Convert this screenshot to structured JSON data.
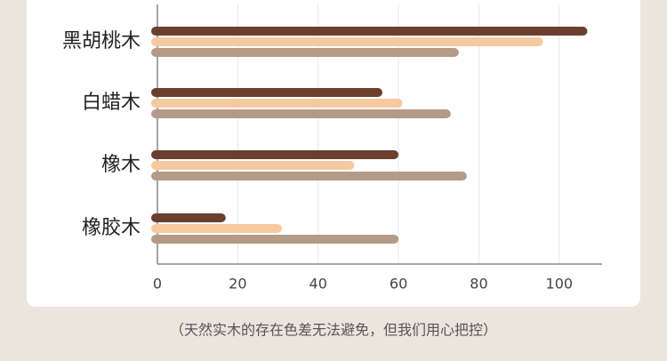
{
  "chart_data": {
    "type": "bar",
    "orientation": "horizontal",
    "categories": [
      "黑胡桃木",
      "白蜡木",
      "橡木",
      "橡胶木"
    ],
    "series": [
      {
        "color": "#6b3f2e",
        "values": [
          107,
          56,
          60,
          17
        ]
      },
      {
        "color": "#f7c9a0",
        "values": [
          96,
          61,
          49,
          31
        ]
      },
      {
        "color": "#b49a87",
        "values": [
          75,
          73,
          77,
          60
        ]
      }
    ],
    "xlim": [
      0,
      110
    ],
    "xticks": [
      0,
      20,
      40,
      60,
      80,
      100
    ],
    "grid": true,
    "footnote": "（天然实木的存在色差无法避免，但我们用心把控）"
  }
}
